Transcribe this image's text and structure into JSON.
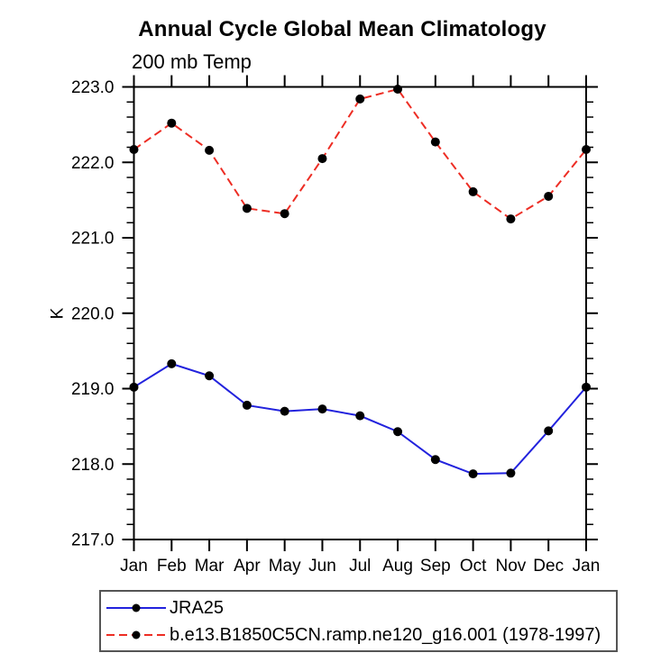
{
  "chart_data": {
    "type": "line",
    "title": "Annual Cycle Global Mean Climatology",
    "subtitle": "200 mb Temp",
    "ylabel": "K",
    "xlabel": "",
    "ylim": [
      217.0,
      223.0
    ],
    "ytick_interval": 1.0,
    "ytick_minor_interval": 0.2,
    "ytick_labels": [
      "217.0",
      "218.0",
      "219.0",
      "220.0",
      "221.0",
      "222.0",
      "223.0"
    ],
    "grid": false,
    "legend_position": "bottom-left",
    "categories": [
      "Jan",
      "Feb",
      "Mar",
      "Apr",
      "May",
      "Jun",
      "Jul",
      "Aug",
      "Sep",
      "Oct",
      "Nov",
      "Dec",
      "Jan"
    ],
    "series": [
      {
        "name": "JRA25",
        "color": "#2222dd",
        "line_style": "solid",
        "marker": "circle",
        "marker_color": "#000000",
        "values": [
          219.02,
          219.33,
          219.17,
          218.78,
          218.7,
          218.73,
          218.64,
          218.43,
          218.06,
          217.87,
          217.88,
          218.44,
          219.02
        ]
      },
      {
        "name": "b.e13.B1850C5CN.ramp.ne120_g16.001 (1978-1997)",
        "color": "#ed2d24",
        "line_style": "dashed",
        "marker": "circle",
        "marker_color": "#000000",
        "values": [
          222.17,
          222.52,
          222.16,
          221.39,
          221.32,
          222.05,
          222.84,
          222.97,
          222.27,
          221.61,
          221.25,
          221.55,
          222.17
        ]
      }
    ]
  }
}
